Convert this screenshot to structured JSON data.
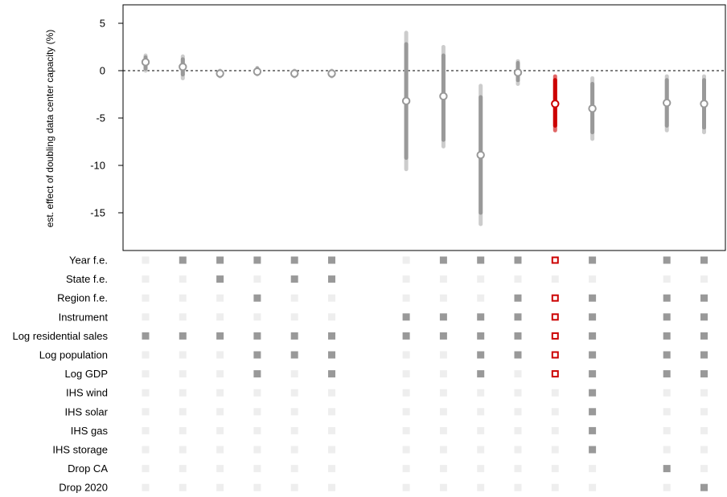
{
  "chart_data": {
    "type": "specification-curve",
    "ylabel": "est. effect of doubling data center capacity (%)",
    "ylim": [
      -18.5,
      6.8
    ],
    "yticks": [
      5,
      0,
      -5,
      -10,
      -15
    ],
    "ytick_labels": [
      "5",
      "0",
      "-5",
      "-10",
      "-15"
    ],
    "reference_line": 0,
    "highlight_color": "#cc0000",
    "mark_color": "#999999",
    "ci_outer_color": "#cccccc",
    "empty_color": "#eeeeee",
    "x": [
      1,
      2,
      3,
      4,
      5,
      6,
      8,
      9,
      10,
      11,
      12,
      13,
      15,
      16
    ],
    "highlighted_index": 10,
    "estimates": [
      0.9,
      0.4,
      -0.3,
      -0.1,
      -0.3,
      -0.3,
      -3.2,
      -2.7,
      -8.9,
      -0.2,
      -3.5,
      -4.0,
      -3.4,
      -3.5
    ],
    "ci_inner": [
      [
        0.2,
        1.4
      ],
      [
        -0.4,
        1.2
      ],
      [
        -0.5,
        -0.1
      ],
      [
        -0.3,
        0.2
      ],
      [
        -0.5,
        -0.1
      ],
      [
        -0.5,
        -0.1
      ],
      [
        -9.2,
        2.8
      ],
      [
        -7.3,
        1.6
      ],
      [
        -15.0,
        -2.8
      ],
      [
        -1.0,
        0.8
      ],
      [
        -5.8,
        -1.0
      ],
      [
        -6.5,
        -1.4
      ],
      [
        -5.8,
        -1.0
      ],
      [
        -6.0,
        -1.0
      ]
    ],
    "ci_outer": [
      [
        0.0,
        1.6
      ],
      [
        -0.8,
        1.5
      ],
      [
        -0.6,
        0.0
      ],
      [
        -0.4,
        0.3
      ],
      [
        -0.6,
        0.0
      ],
      [
        -0.6,
        0.0
      ],
      [
        -10.4,
        4.0
      ],
      [
        -8.0,
        2.5
      ],
      [
        -16.2,
        -1.6
      ],
      [
        -1.4,
        1.0
      ],
      [
        -6.3,
        -0.6
      ],
      [
        -7.2,
        -0.8
      ],
      [
        -6.3,
        -0.6
      ],
      [
        -6.5,
        -0.6
      ]
    ],
    "spec_rows": [
      "Year f.e.",
      "State f.e.",
      "Region f.e.",
      "Instrument",
      "Log residential sales",
      "Log population",
      "Log GDP",
      "IHS wind",
      "IHS solar",
      "IHS gas",
      "IHS storage",
      "Drop CA",
      "Drop 2020"
    ],
    "spec_matrix": [
      [
        0,
        1,
        1,
        1,
        1,
        1,
        0,
        1,
        1,
        1,
        1,
        1,
        1,
        1
      ],
      [
        0,
        0,
        1,
        0,
        1,
        1,
        0,
        0,
        0,
        0,
        0,
        0,
        0,
        0
      ],
      [
        0,
        0,
        0,
        1,
        0,
        0,
        0,
        0,
        0,
        1,
        1,
        1,
        1,
        1
      ],
      [
        0,
        0,
        0,
        0,
        0,
        0,
        1,
        1,
        1,
        1,
        1,
        1,
        1,
        1
      ],
      [
        1,
        1,
        1,
        1,
        1,
        1,
        1,
        1,
        1,
        1,
        1,
        1,
        1,
        1
      ],
      [
        0,
        0,
        0,
        1,
        1,
        1,
        0,
        0,
        1,
        1,
        1,
        1,
        1,
        1
      ],
      [
        0,
        0,
        0,
        1,
        0,
        1,
        0,
        0,
        1,
        0,
        1,
        1,
        1,
        1
      ],
      [
        0,
        0,
        0,
        0,
        0,
        0,
        0,
        0,
        0,
        0,
        0,
        1,
        0,
        0
      ],
      [
        0,
        0,
        0,
        0,
        0,
        0,
        0,
        0,
        0,
        0,
        0,
        1,
        0,
        0
      ],
      [
        0,
        0,
        0,
        0,
        0,
        0,
        0,
        0,
        0,
        0,
        0,
        1,
        0,
        0
      ],
      [
        0,
        0,
        0,
        0,
        0,
        0,
        0,
        0,
        0,
        0,
        0,
        1,
        0,
        0
      ],
      [
        0,
        0,
        0,
        0,
        0,
        0,
        0,
        0,
        0,
        0,
        0,
        0,
        1,
        0
      ],
      [
        0,
        0,
        0,
        0,
        0,
        0,
        0,
        0,
        0,
        0,
        0,
        0,
        0,
        1
      ]
    ]
  }
}
